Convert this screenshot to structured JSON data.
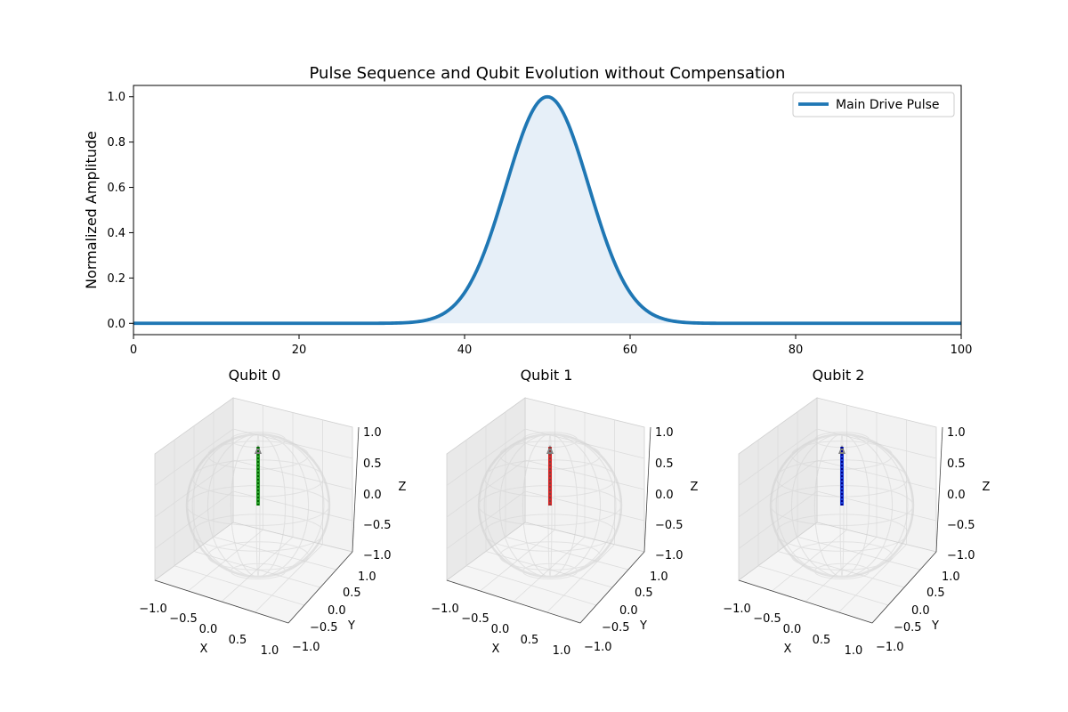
{
  "figure": {
    "title": "Pulse Sequence and Qubit Evolution without Compensation"
  },
  "chart_data": [
    {
      "type": "line",
      "title": "Pulse Sequence and Qubit Evolution without Compensation",
      "xlabel": "",
      "ylabel": "Normalized Amplitude",
      "xlim": [
        0,
        100
      ],
      "ylim": [
        -0.05,
        1.05
      ],
      "xticks": [
        "0",
        "20",
        "40",
        "60",
        "80",
        "100"
      ],
      "yticks": [
        "0.0",
        "0.2",
        "0.4",
        "0.6",
        "0.8",
        "1.0"
      ],
      "legend": {
        "placement": "top-right",
        "entries": [
          "Main Drive Pulse"
        ]
      },
      "grid": false,
      "series": [
        {
          "name": "Main Drive Pulse",
          "color": "#1f77b4",
          "fill_color": "#e6eff8",
          "shape": "gaussian",
          "center": 50,
          "sigma": 5,
          "peak": 1.0,
          "x": [
            0,
            10,
            20,
            30,
            34,
            38,
            40,
            42,
            44,
            46,
            48,
            50,
            52,
            54,
            56,
            58,
            60,
            62,
            66,
            70,
            80,
            90,
            100
          ],
          "y": [
            0.0,
            0.0,
            0.0,
            0.0003,
            0.006,
            0.056,
            0.135,
            0.278,
            0.487,
            0.726,
            0.923,
            1.0,
            0.923,
            0.726,
            0.487,
            0.278,
            0.135,
            0.056,
            0.006,
            0.0003,
            0.0,
            0.0,
            0.0
          ]
        }
      ]
    },
    {
      "type": "scatter",
      "chart_kind": "bloch-sphere-3d",
      "title": "Qubit 0",
      "xlabel": "X",
      "ylabel": "Y",
      "zlabel": "Z",
      "xlim": [
        -1,
        1
      ],
      "ylim": [
        -1,
        1
      ],
      "zlim": [
        -1,
        1
      ],
      "ticks": [
        "−1.0",
        "−0.5",
        "0.0",
        "0.5",
        "1.0"
      ],
      "vector_color": "#2ca02c",
      "trajectory_color": "#006400",
      "trajectory": {
        "x": [
          0,
          0
        ],
        "y": [
          0,
          0
        ],
        "z": [
          0,
          1
        ]
      }
    },
    {
      "type": "scatter",
      "chart_kind": "bloch-sphere-3d",
      "title": "Qubit 1",
      "xlabel": "X",
      "ylabel": "Y",
      "zlabel": "Z",
      "xlim": [
        -1,
        1
      ],
      "ylim": [
        -1,
        1
      ],
      "zlim": [
        -1,
        1
      ],
      "ticks": [
        "−1.0",
        "−0.5",
        "0.0",
        "0.5",
        "1.0"
      ],
      "vector_color": "#d62728",
      "trajectory_color": "#8b3a3a",
      "trajectory": {
        "x": [
          0,
          0
        ],
        "y": [
          0,
          0
        ],
        "z": [
          0,
          1
        ]
      }
    },
    {
      "type": "scatter",
      "chart_kind": "bloch-sphere-3d",
      "title": "Qubit 2",
      "xlabel": "X",
      "ylabel": "Y",
      "zlabel": "Z",
      "xlim": [
        -1,
        1
      ],
      "ylim": [
        -1,
        1
      ],
      "zlim": [
        -1,
        1
      ],
      "ticks": [
        "−1.0",
        "−0.5",
        "0.0",
        "0.5",
        "1.0"
      ],
      "vector_color": "#1f3fd6",
      "trajectory_color": "#00008b",
      "trajectory": {
        "x": [
          0,
          0
        ],
        "y": [
          0,
          0
        ],
        "z": [
          0,
          1
        ]
      }
    }
  ]
}
